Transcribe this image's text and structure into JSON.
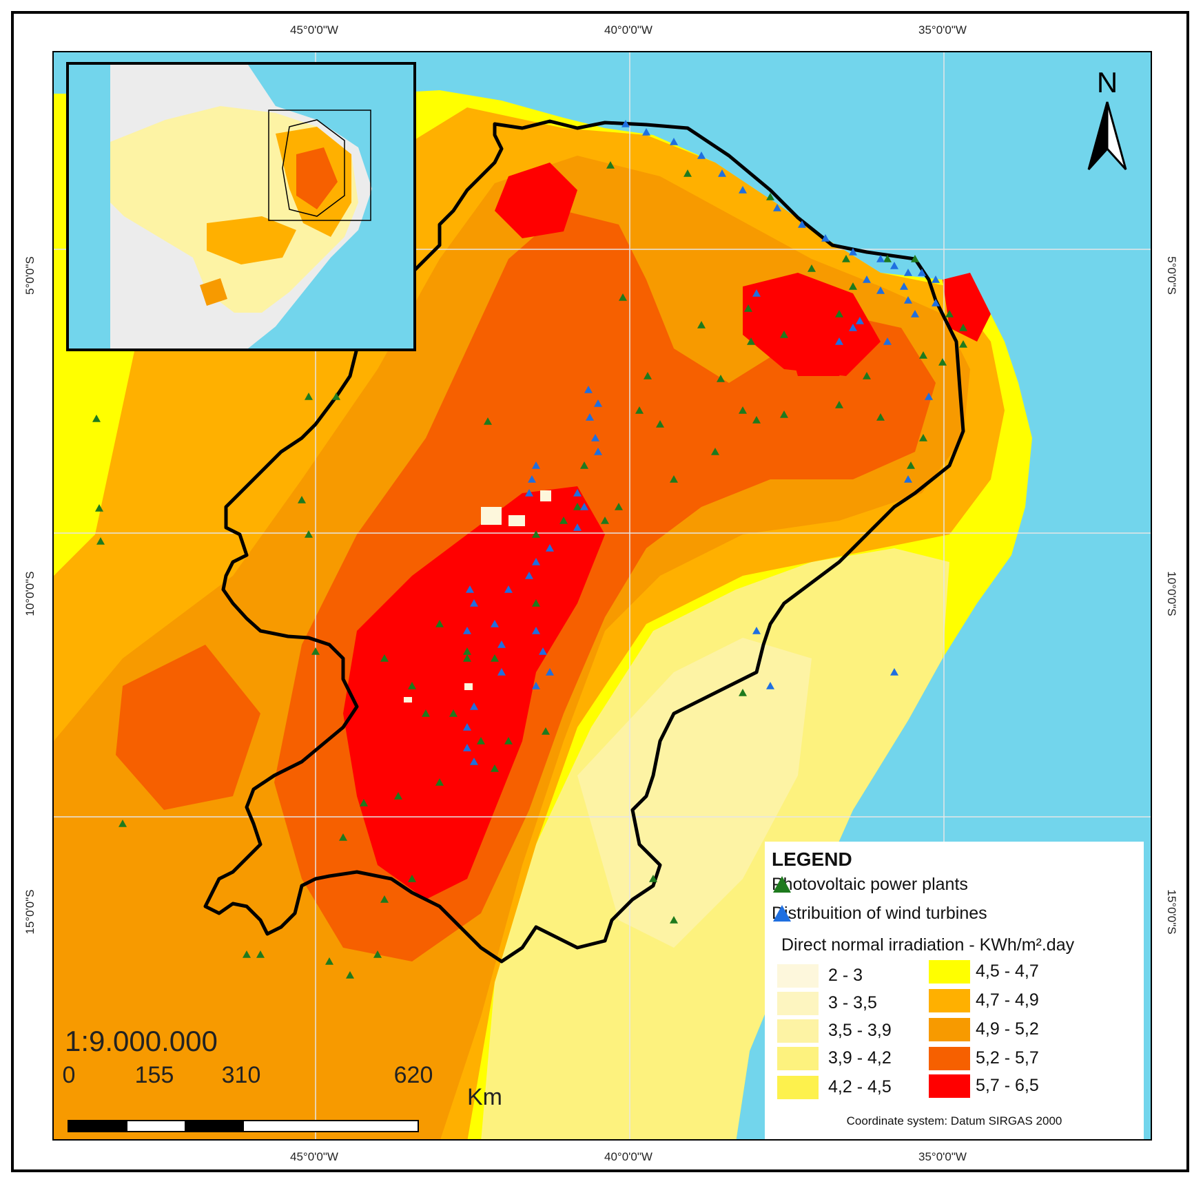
{
  "graticule": {
    "top_labels": [
      "45°0'0\"W",
      "40°0'0\"W",
      "35°0'0\"W"
    ],
    "bottom_labels": [
      "45°0'0\"W",
      "40°0'0\"W",
      "35°0'0\"W"
    ],
    "left_labels": [
      "5°0'0\"S",
      "10°0'0\"S",
      "15°0'0\"S"
    ],
    "right_labels": [
      "5°0'0\"S",
      "10°0'0\"S",
      "15°0'0\"S"
    ]
  },
  "north_arrow": {
    "label": "N",
    "icon": "north-arrow-icon"
  },
  "scale": {
    "ratio": "1:9.000.000",
    "ticks": [
      "0",
      "155",
      "310",
      "620"
    ],
    "unit": "Km"
  },
  "legend": {
    "title": "LEGEND",
    "symbols": [
      {
        "label": "Photovoltaic power plants",
        "icon": "green-triangle-icon",
        "color": "#1e7a1e"
      },
      {
        "label": "Distribuition of wind turbines",
        "icon": "blue-triangle-icon",
        "color": "#1f6fe0"
      }
    ],
    "dni_title": "Direct normal irradiation - KWh/m².day",
    "classes": [
      {
        "label": "2 - 3",
        "color": "#fdf7dc"
      },
      {
        "label": "3 - 3,5",
        "color": "#fdf5c0"
      },
      {
        "label": "3,5 - 3,9",
        "color": "#fdf3a4"
      },
      {
        "label": "3,9 - 4,2",
        "color": "#fdf27e"
      },
      {
        "label": "4,2 - 4,5",
        "color": "#fdf14d"
      },
      {
        "label": "4,5 - 4,7",
        "color": "#ffff00"
      },
      {
        "label": "4,7 - 4,9",
        "color": "#ffb000"
      },
      {
        "label": "4,9 - 5,2",
        "color": "#f79a00"
      },
      {
        "label": "5,2 - 5,7",
        "color": "#f66000"
      },
      {
        "label": "5,7 - 6,5",
        "color": "#ff0000"
      }
    ],
    "coordinate_note": "Coordinate system: Datum SIRGAS 2000"
  },
  "colors": {
    "ocean": "#72d5ec",
    "outline": "#000000",
    "gridline": "#e6e6e6"
  }
}
